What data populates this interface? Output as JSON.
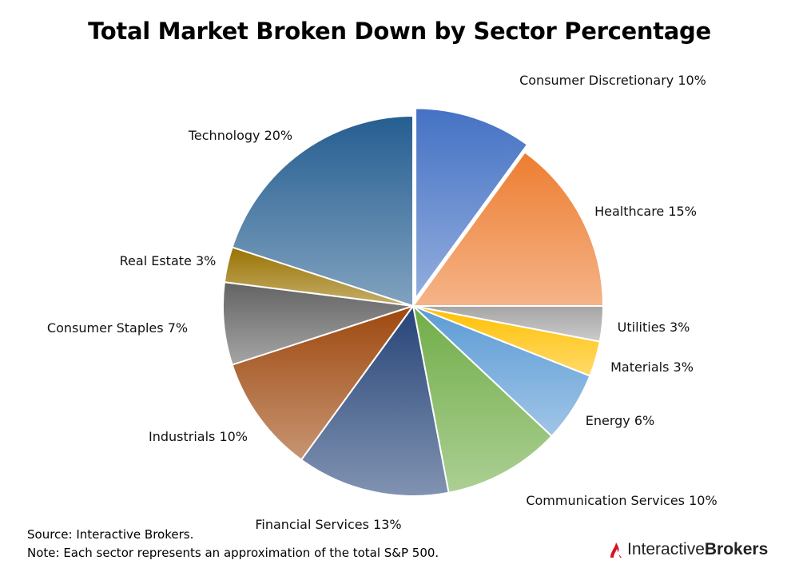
{
  "chart_data": {
    "type": "pie",
    "title": "Total Market Broken Down by Sector Percentage",
    "slices": [
      {
        "name": "Consumer Discretionary",
        "value": 10,
        "label": "Consumer Discretionary 10%",
        "color": "#4472C4",
        "exploded": true
      },
      {
        "name": "Healthcare",
        "value": 15,
        "label": "Healthcare 15%",
        "color": "#ED7D31"
      },
      {
        "name": "Utilities",
        "value": 3,
        "label": "Utilities 3%",
        "color": "#A5A5A5"
      },
      {
        "name": "Materials",
        "value": 3,
        "label": "Materials 3%",
        "color": "#FFC000"
      },
      {
        "name": "Energy",
        "value": 6,
        "label": "Energy 6%",
        "color": "#5B9BD5"
      },
      {
        "name": "Communication Services",
        "value": 10,
        "label": "Communication Services 10%",
        "color": "#70AD47"
      },
      {
        "name": "Financial Services",
        "value": 13,
        "label": "Financial Services 13%",
        "color": "#264478"
      },
      {
        "name": "Industrials",
        "value": 10,
        "label": "Industrials 10%",
        "color": "#9E480E"
      },
      {
        "name": "Consumer Staples",
        "value": 7,
        "label": "Consumer Staples 7%",
        "color": "#636363"
      },
      {
        "name": "Real Estate",
        "value": 3,
        "label": "Real Estate 3%",
        "color": "#997300"
      },
      {
        "name": "Technology",
        "value": 20,
        "label": "Technology 20%",
        "color": "#255E91"
      }
    ]
  },
  "footer": {
    "source": "Source: Interactive Brokers.",
    "note": "Note: Each sector represents an approximation of the total S&P 500."
  },
  "logo": {
    "part1": "Interactive",
    "part2": "Brokers",
    "color": "#D81222"
  }
}
